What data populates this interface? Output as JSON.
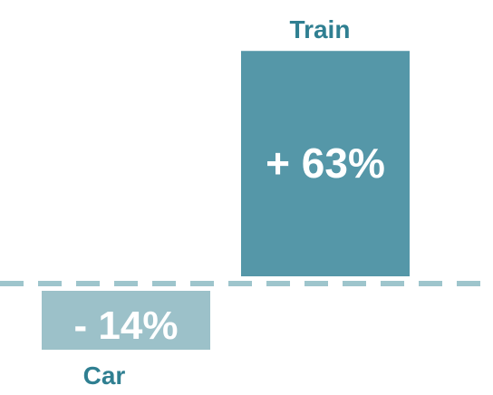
{
  "chart_data": {
    "type": "bar",
    "categories": [
      "Car",
      "Train"
    ],
    "values": [
      -14,
      63
    ],
    "value_labels": [
      "- 14%",
      "+ 63%"
    ],
    "title": "",
    "xlabel": "",
    "ylabel": "",
    "ylim": [
      -20,
      66
    ],
    "grid": false,
    "legend": "none",
    "baseline": {
      "value": 0,
      "style": "dashed",
      "color": "#9ec5cc"
    },
    "colors": {
      "Car": "#9cc1c9",
      "Train": "#5597a8",
      "category_label": "#2f7f91",
      "value_label": "#ffffff"
    }
  }
}
